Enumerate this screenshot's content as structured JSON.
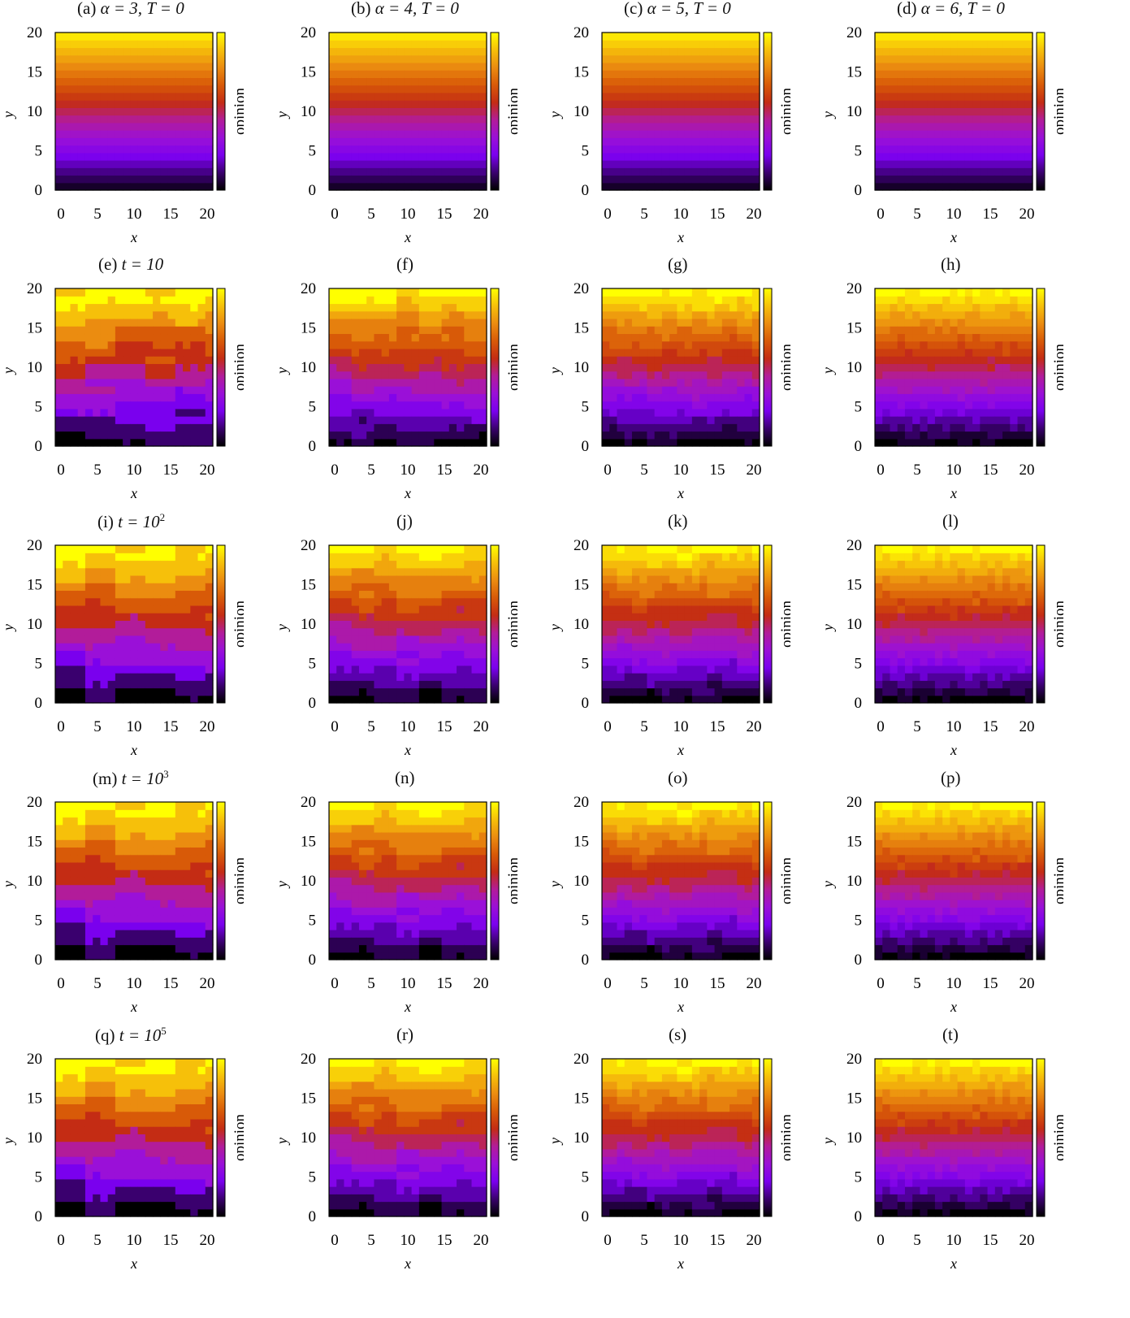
{
  "colorbar_label": "opinion",
  "x_axis_label": "x",
  "y_axis_label": "y",
  "x_ticks": [
    "0",
    "5",
    "10",
    "15",
    "20"
  ],
  "y_ticks": [
    "0",
    "5",
    "10",
    "15",
    "20"
  ],
  "colors": {
    "scale": [
      "#000000",
      "#3a006e",
      "#7a00ee",
      "#9a10d8",
      "#b21c9a",
      "#c42c14",
      "#d85a08",
      "#eb8c10",
      "#f6c00a",
      "#ffff00"
    ]
  },
  "titles": [
    [
      {
        "tag": "(a) ",
        "math": "α = 3, T = 0",
        "sup": ""
      },
      {
        "tag": "(b) ",
        "math": "α = 4, T = 0",
        "sup": ""
      },
      {
        "tag": "(c) ",
        "math": "α = 5, T = 0",
        "sup": ""
      },
      {
        "tag": "(d) ",
        "math": "α = 6, T = 0",
        "sup": ""
      }
    ],
    [
      {
        "tag": "(e) ",
        "math": "t = 10",
        "sup": ""
      },
      {
        "tag": "(f)",
        "math": "",
        "sup": ""
      },
      {
        "tag": "(g)",
        "math": "",
        "sup": ""
      },
      {
        "tag": "(h)",
        "math": "",
        "sup": ""
      }
    ],
    [
      {
        "tag": "(i) ",
        "math": "t = 10",
        "sup": "2"
      },
      {
        "tag": "(j)",
        "math": "",
        "sup": ""
      },
      {
        "tag": "(k)",
        "math": "",
        "sup": ""
      },
      {
        "tag": "(l)",
        "math": "",
        "sup": ""
      }
    ],
    [
      {
        "tag": "(m) ",
        "math": "t = 10",
        "sup": "3"
      },
      {
        "tag": "(n)",
        "math": "",
        "sup": ""
      },
      {
        "tag": "(o)",
        "math": "",
        "sup": ""
      },
      {
        "tag": "(p)",
        "math": "",
        "sup": ""
      }
    ],
    [
      {
        "tag": "(q) ",
        "math": "t = 10",
        "sup": "5"
      },
      {
        "tag": "(r)",
        "math": "",
        "sup": ""
      },
      {
        "tag": "(s)",
        "math": "",
        "sup": ""
      },
      {
        "tag": "(t)",
        "math": "",
        "sup": ""
      }
    ]
  ],
  "chart_data": {
    "type": "heatmap",
    "layout": {
      "rows": 5,
      "cols": 4
    },
    "columns": [
      {
        "alpha": 3,
        "T": 0
      },
      {
        "alpha": 4,
        "T": 0
      },
      {
        "alpha": 5,
        "T": 0
      },
      {
        "alpha": 6,
        "T": 0
      }
    ],
    "rows": [
      {
        "t": 0
      },
      {
        "t": 10
      },
      {
        "t": 100
      },
      {
        "t": 1000
      },
      {
        "t": 100000
      }
    ],
    "grid_size": 21,
    "xlim": [
      0,
      20
    ],
    "ylim": [
      0,
      20
    ],
    "colorbar": "opinion",
    "colormap": "black-purple-red-orange-yellow",
    "domain_size_by_alpha": {
      "3": 4,
      "4": 3,
      "5": 2,
      "6": 1
    },
    "description_values": "opinion increases with y; coarse domains for small alpha, fine stripes for large alpha"
  }
}
